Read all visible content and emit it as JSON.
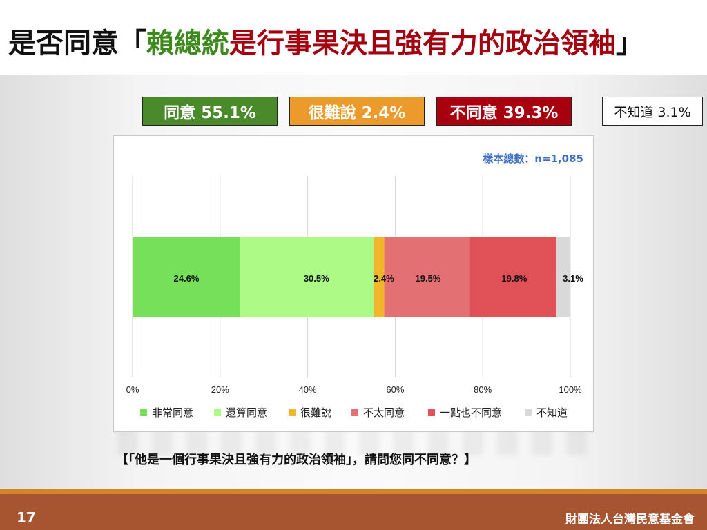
{
  "title": {
    "prefix": "是否同意「",
    "highlight_green": "賴總統",
    "highlight_red": "是行事果決且強有力的政治領袖",
    "suffix": "」"
  },
  "summary": {
    "agree": "同意 55.1%",
    "hard_to_say": "很難說 2.4%",
    "disagree": "不同意 39.3%",
    "unknown": "不知道 3.1%"
  },
  "colors": {
    "agree_box": "#4a8a2b",
    "hard_box": "#ec9a2c",
    "disagree_box": "#a9000f"
  },
  "chart_data": {
    "type": "bar",
    "orientation": "horizontal-stacked",
    "sample_note": "樣本總數：n=1,085",
    "xlim": [
      0,
      100
    ],
    "x_ticks": [
      "0%",
      "20%",
      "40%",
      "60%",
      "80%",
      "100%"
    ],
    "x_tick_values": [
      0,
      20,
      40,
      60,
      80,
      100
    ],
    "grid": true,
    "legend_position": "bottom",
    "series": [
      {
        "name": "非常同意",
        "value": 24.6,
        "label": "24.6%",
        "color": "#77e05a"
      },
      {
        "name": "還算同意",
        "value": 30.5,
        "label": "30.5%",
        "color": "#adfa87"
      },
      {
        "name": "很難說",
        "value": 2.4,
        "label": "2.4%",
        "color": "#f2b62b"
      },
      {
        "name": "不太同意",
        "value": 19.5,
        "label": "19.5%",
        "color": "#e37072"
      },
      {
        "name": "一點也不同意",
        "value": 19.8,
        "label": "19.8%",
        "color": "#e05158"
      },
      {
        "name": "不知道",
        "value": 3.1,
        "label": "3.1%",
        "color": "#d9d9d9"
      }
    ]
  },
  "question": "【「他是一個行事果決且強有力的政治領袖」，請問您同不同意？】",
  "footer": {
    "page": "17",
    "org": "財團法人台灣民意基金會"
  }
}
